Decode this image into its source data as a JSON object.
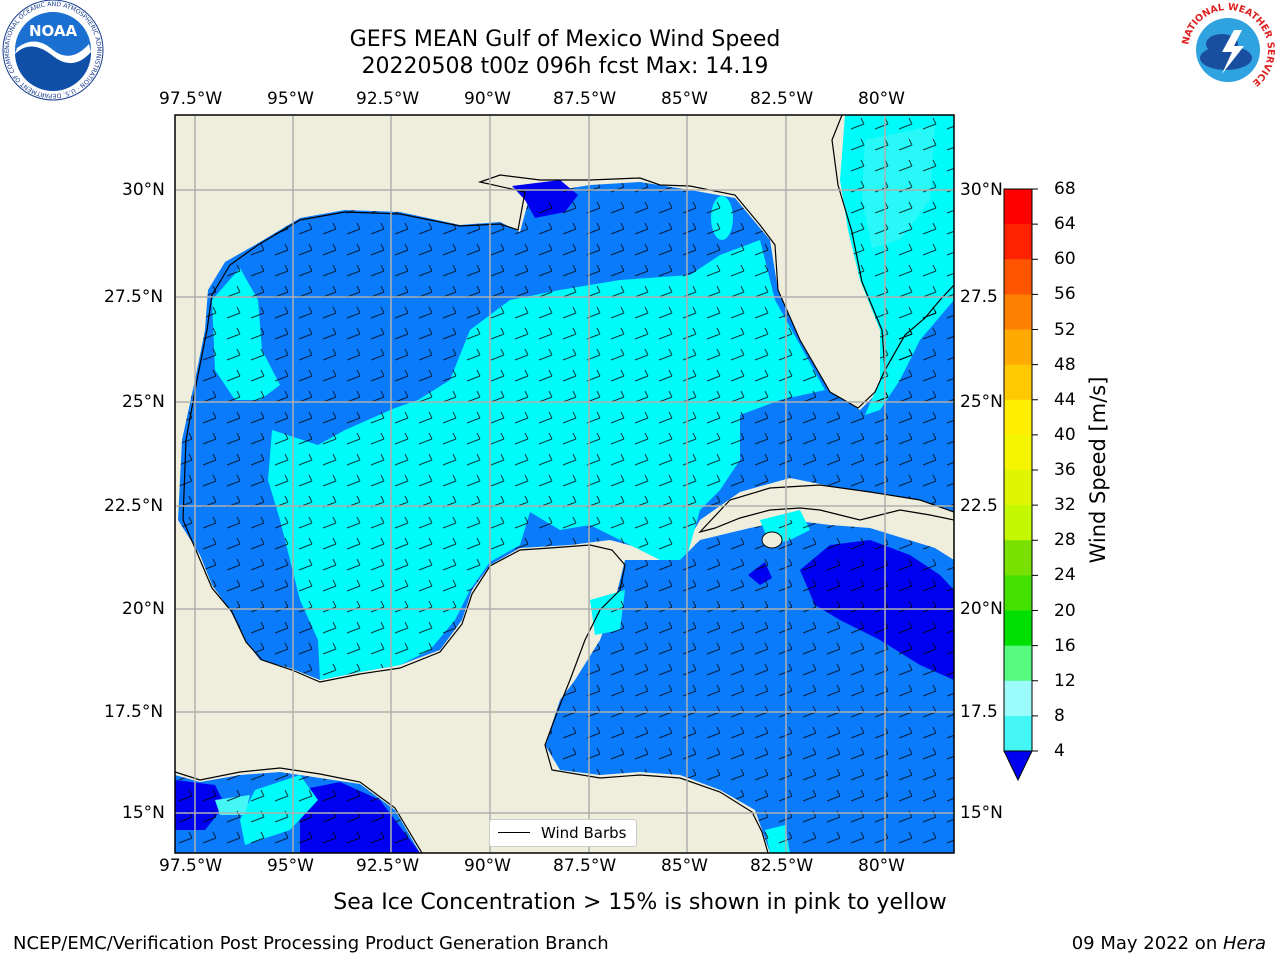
{
  "title": {
    "line1": "GEFS MEAN Gulf of Mexico Wind Speed",
    "line2": "20220508 t00z 096h fcst   Max: 14.19"
  },
  "map": {
    "lon_labels": [
      "97.5°W",
      "95°W",
      "92.5°W",
      "90°W",
      "87.5°W",
      "85°W",
      "82.5°W",
      "80°W"
    ],
    "lat_labels_left": [
      "30°N",
      "27.5°N",
      "25°N",
      "22.5°N",
      "20°N",
      "17.5°N",
      "15°N"
    ],
    "lat_labels_right": [
      "30°N",
      "27.5",
      "25°N",
      "22.5",
      "20°N",
      "17.5",
      "15°N"
    ],
    "legend_label": "Wind Barbs",
    "colors": {
      "land": "#efeedc",
      "wind_4_8": "#0a7bfb",
      "wind_8_12": "#00fbfb",
      "wind_0_4": "#0000f0"
    }
  },
  "colorbar": {
    "label": "Wind Speed [m/s]",
    "ticks": [
      "68",
      "64",
      "60",
      "56",
      "52",
      "48",
      "44",
      "40",
      "36",
      "32",
      "28",
      "24",
      "20",
      "16",
      "12",
      "8",
      "4"
    ],
    "colors": [
      "#ff0000",
      "#ff2200",
      "#ff5500",
      "#ff7f00",
      "#ffaa00",
      "#ffc800",
      "#ffee00",
      "#f5f500",
      "#e0f500",
      "#c4f700",
      "#7ae000",
      "#44e000",
      "#00e000",
      "#55fa7f",
      "#9cfcfc",
      "#44f6f6",
      "#00f6f6",
      "#0a7bfb"
    ]
  },
  "subtitle": "Sea Ice Concentration > 15% is shown in pink to yellow",
  "footer": {
    "left": "NCEP/EMC/Verification Post Processing Product Generation Branch",
    "right_date": "09 May 2022 on ",
    "right_host": "Hera"
  },
  "logos": {
    "noaa_text": "NOAA",
    "noaa_ring": "NATIONAL OCEANIC AND ATMOSPHERIC ADMINISTRATION · U.S. DEPARTMENT OF COMMERCE",
    "nws_ring": "NATIONAL WEATHER SERVICE"
  }
}
